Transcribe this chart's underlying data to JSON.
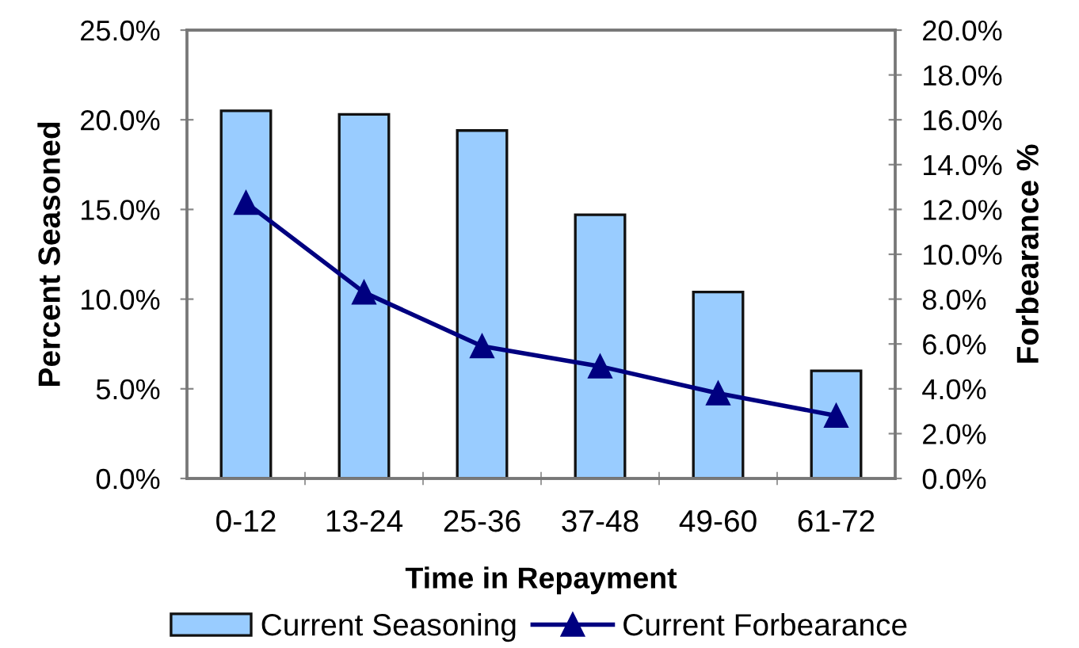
{
  "chart_data": {
    "type": "bar",
    "xlabel": "Time in Repayment",
    "ylabel": "Percent Seasoned",
    "y2label": "Forbearance %",
    "categories": [
      "0-12",
      "13-24",
      "25-36",
      "37-48",
      "49-60",
      "61-72"
    ],
    "series": [
      {
        "name": "Current Seasoning",
        "color": "#99ccff",
        "values": [
          20.5,
          20.3,
          19.4,
          14.7,
          10.4,
          6.0
        ]
      },
      {
        "name": "Current Forbearance",
        "type": "line",
        "axis": "y2",
        "color": "#000080",
        "values": [
          12.3,
          8.3,
          5.9,
          5.0,
          3.8,
          2.8
        ]
      }
    ],
    "ylim": [
      0,
      25
    ],
    "yticks": [
      {
        "value": 0,
        "label": "0.0%"
      },
      {
        "value": 5,
        "label": "5.0%"
      },
      {
        "value": 10,
        "label": "10.0%"
      },
      {
        "value": 15,
        "label": "15.0%"
      },
      {
        "value": 20,
        "label": "20.0%"
      },
      {
        "value": 25,
        "label": "25.0%"
      }
    ],
    "y2lim": [
      0,
      20
    ],
    "y2ticks": [
      {
        "value": 0,
        "label": "0.0%"
      },
      {
        "value": 2,
        "label": "2.0%"
      },
      {
        "value": 4,
        "label": "4.0%"
      },
      {
        "value": 6,
        "label": "6.0%"
      },
      {
        "value": 8,
        "label": "8.0%"
      },
      {
        "value": 10,
        "label": "10.0%"
      },
      {
        "value": 12,
        "label": "12.0%"
      },
      {
        "value": 14,
        "label": "14.0%"
      },
      {
        "value": 16,
        "label": "16.0%"
      },
      {
        "value": 18,
        "label": "18.0%"
      },
      {
        "value": 20,
        "label": "20.0%"
      }
    ],
    "marker": "triangle",
    "line_style": "solid",
    "legend": "bottom",
    "grid": false
  }
}
